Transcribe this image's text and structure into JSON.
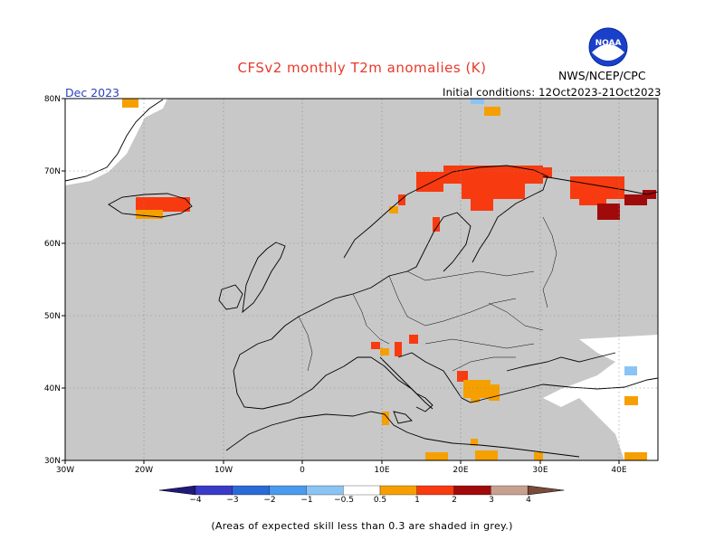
{
  "header": {
    "title": "CFSv2 monthly T2m anomalies (K)",
    "month": "Dec 2023",
    "initial_conditions": "Initial conditions: 12Oct2023-21Oct2023",
    "agency": "NWS/NCEP/CPC",
    "logo_text": "NOAA"
  },
  "map": {
    "lon_range": [
      -30,
      45
    ],
    "lat_range": [
      30,
      80
    ],
    "lat_ticks": [
      "30N",
      "40N",
      "50N",
      "60N",
      "70N",
      "80N"
    ],
    "lon_ticks": [
      "30W",
      "20W",
      "10W",
      "0",
      "10E",
      "20E",
      "30E",
      "40E"
    ],
    "background_color": "#c8c8c8",
    "grid": true
  },
  "legend": {
    "labels": [
      "−4",
      "−3",
      "−2",
      "−1",
      "−0.5",
      "0.5",
      "1",
      "2",
      "3",
      "4"
    ],
    "bins": [
      {
        "range": "<-4",
        "color": "#1f1a7a"
      },
      {
        "range": "-4..-3",
        "color": "#3a3ac8"
      },
      {
        "range": "-3..-2",
        "color": "#2a6ad8"
      },
      {
        "range": "-2..-1",
        "color": "#4a9aee"
      },
      {
        "range": "-1..-0.5",
        "color": "#8ac4f5"
      },
      {
        "range": "-0.5..0.5",
        "color": "#ffffff"
      },
      {
        "range": "0.5..1",
        "color": "#f5a000"
      },
      {
        "range": "1..2",
        "color": "#f83a10"
      },
      {
        "range": "2..3",
        "color": "#a00a0a"
      },
      {
        "range": "3..4",
        "color": "#c8a090"
      },
      {
        "range": ">4",
        "color": "#7a4a3a"
      }
    ]
  },
  "footnote": "(Areas of expected skill less than 0.3 are shaded in grey.)"
}
